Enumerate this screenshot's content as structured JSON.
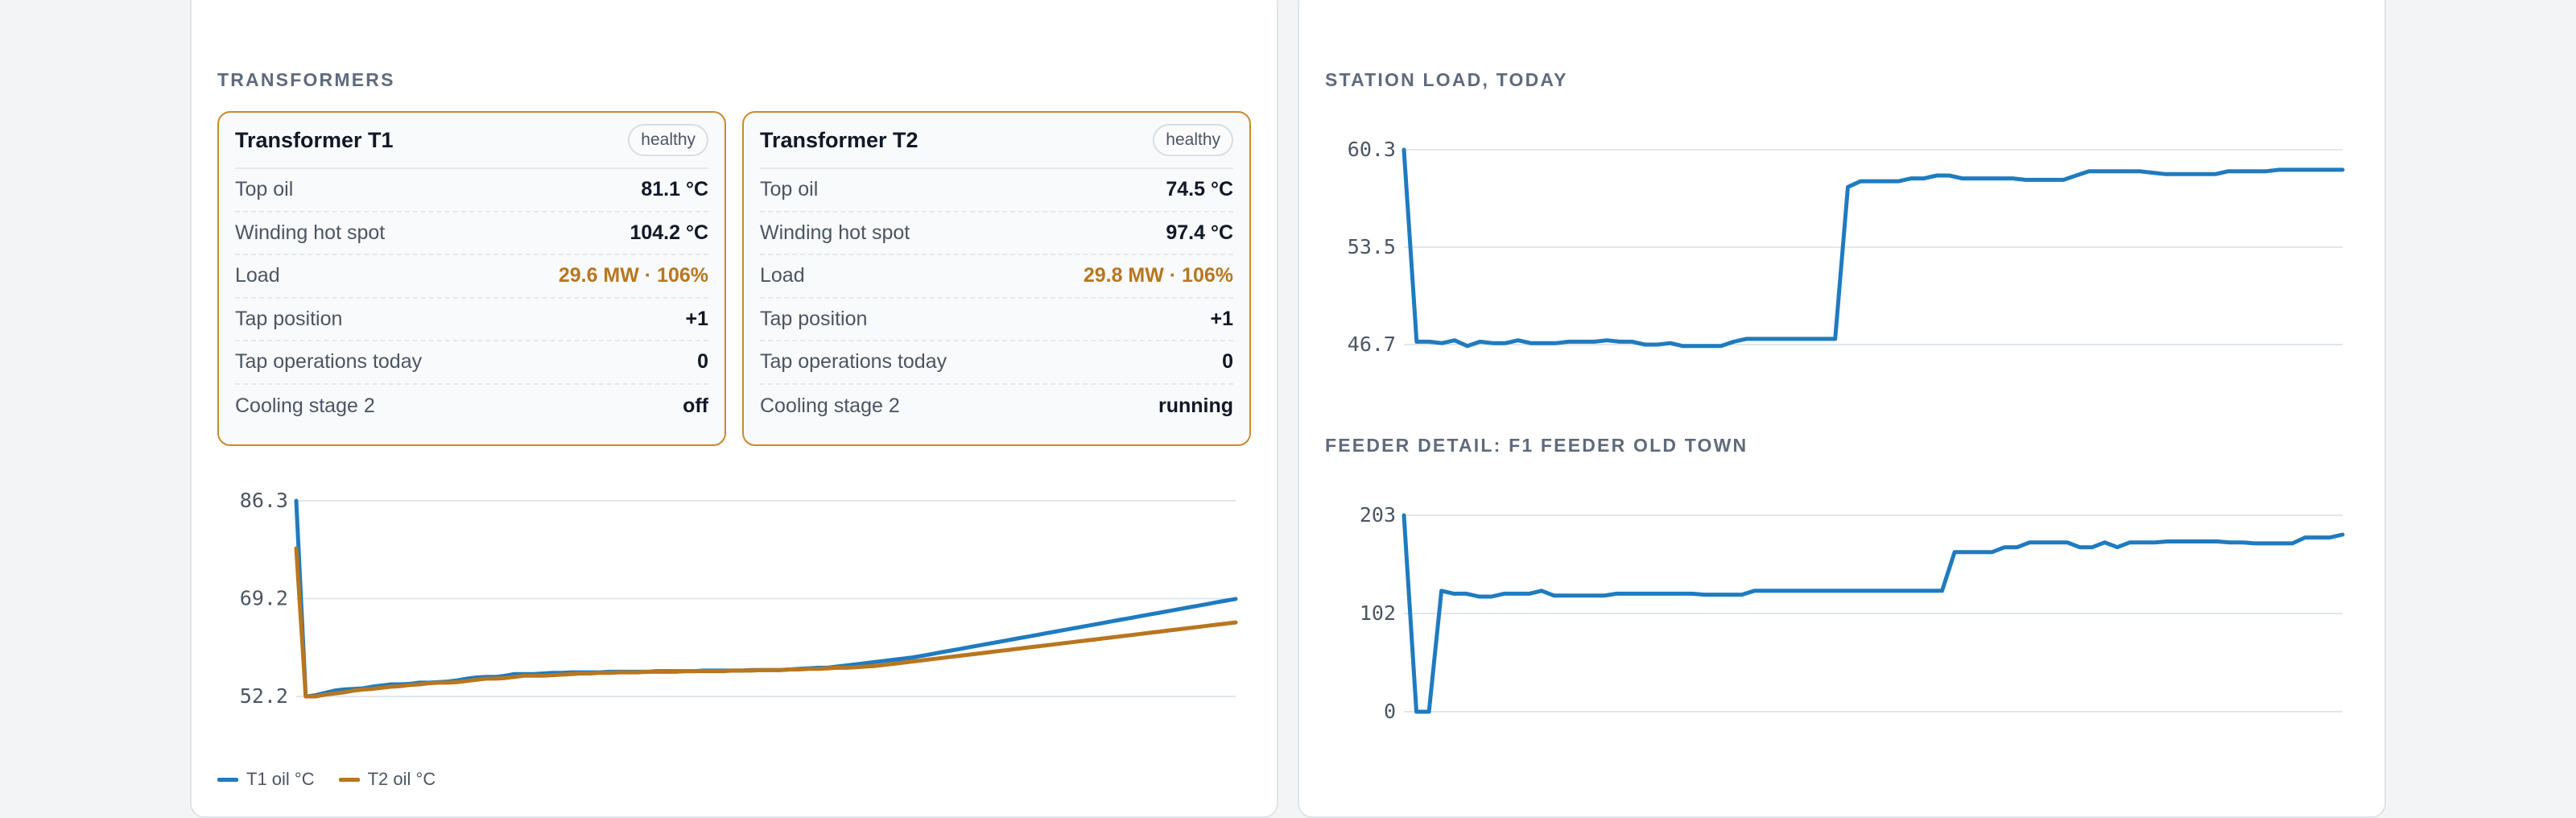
{
  "transformers": {
    "section_title": "TRANSFORMERS",
    "cards": [
      {
        "name": "Transformer T1",
        "status": "healthy",
        "rows": [
          {
            "label": "Top oil",
            "value": "81.1 °C",
            "warn": false
          },
          {
            "label": "Winding hot spot",
            "value": "104.2 °C",
            "warn": false
          },
          {
            "label": "Load",
            "value": "29.6 MW · 106%",
            "warn": true
          },
          {
            "label": "Tap position",
            "value": "+1",
            "warn": false
          },
          {
            "label": "Tap operations today",
            "value": "0",
            "warn": false
          },
          {
            "label": "Cooling stage 2",
            "value": "off",
            "warn": false
          }
        ]
      },
      {
        "name": "Transformer T2",
        "status": "healthy",
        "rows": [
          {
            "label": "Top oil",
            "value": "74.5 °C",
            "warn": false
          },
          {
            "label": "Winding hot spot",
            "value": "97.4 °C",
            "warn": false
          },
          {
            "label": "Load",
            "value": "29.8 MW · 106%",
            "warn": true
          },
          {
            "label": "Tap position",
            "value": "+1",
            "warn": false
          },
          {
            "label": "Tap operations today",
            "value": "0",
            "warn": false
          },
          {
            "label": "Cooling stage 2",
            "value": "running",
            "warn": false
          }
        ]
      }
    ],
    "legend": [
      {
        "label": "T1 oil °C",
        "color": "#1f7bbf"
      },
      {
        "label": "T2 oil °C",
        "color": "#b8761f"
      }
    ]
  },
  "station": {
    "section_title": "STATION LOAD, TODAY"
  },
  "feeder": {
    "section_title": "FEEDER DETAIL: F1 FEEDER OLD TOWN"
  },
  "colors": {
    "blue": "#1f7bbf",
    "amber": "#b8761f",
    "warn_border": "#c98a2e",
    "grid": "#e2e6ea"
  },
  "chart_data": [
    {
      "type": "line",
      "ticks": [
        "86.3",
        "69.2",
        "52.2"
      ],
      "ylim": [
        52.2,
        86.3
      ],
      "series": [
        {
          "name": "T1 oil °C",
          "color": "#1f7bbf",
          "values": [
            86.3,
            52.2,
            52.4,
            52.8,
            53.2,
            53.4,
            53.5,
            53.6,
            53.9,
            54.1,
            54.3,
            54.3,
            54.4,
            54.6,
            54.6,
            54.7,
            54.8,
            55.0,
            55.3,
            55.5,
            55.6,
            55.6,
            55.8,
            56.1,
            56.1,
            56.1,
            56.2,
            56.3,
            56.3,
            56.4,
            56.4,
            56.4,
            56.4,
            56.5,
            56.5,
            56.5,
            56.5,
            56.5,
            56.6,
            56.6,
            56.6,
            56.6,
            56.6,
            56.7,
            56.7,
            56.7,
            56.7,
            56.7,
            56.8,
            56.8,
            56.8,
            56.8,
            56.9,
            57.0,
            57.1,
            57.2,
            57.2,
            57.4,
            57.6,
            57.8,
            58.0,
            58.2,
            58.4,
            58.6,
            58.8,
            59.0,
            59.3,
            59.6,
            59.9,
            60.2,
            60.5,
            60.8,
            61.1,
            61.4,
            61.7,
            62.0,
            62.3,
            62.6,
            62.9,
            63.2,
            63.5,
            63.8,
            64.1,
            64.4,
            64.7,
            65.0,
            65.3,
            65.6,
            65.9,
            66.2,
            66.5,
            66.8,
            67.1,
            67.4,
            67.7,
            68.0,
            68.3,
            68.6,
            68.9,
            69.2
          ]
        },
        {
          "name": "T2 oil °C",
          "color": "#b8761f",
          "values": [
            78.0,
            52.2,
            52.2,
            52.5,
            52.7,
            52.9,
            53.2,
            53.4,
            53.5,
            53.7,
            53.9,
            54.0,
            54.2,
            54.3,
            54.5,
            54.6,
            54.6,
            54.7,
            54.9,
            55.1,
            55.3,
            55.3,
            55.4,
            55.6,
            55.8,
            55.8,
            55.8,
            55.9,
            56.0,
            56.1,
            56.2,
            56.2,
            56.3,
            56.3,
            56.4,
            56.4,
            56.4,
            56.5,
            56.5,
            56.5,
            56.5,
            56.6,
            56.6,
            56.6,
            56.6,
            56.6,
            56.7,
            56.7,
            56.7,
            56.8,
            56.8,
            56.8,
            56.9,
            56.9,
            57.0,
            57.0,
            57.1,
            57.2,
            57.2,
            57.3,
            57.4,
            57.5,
            57.7,
            57.9,
            58.1,
            58.3,
            58.5,
            58.7,
            58.9,
            59.1,
            59.3,
            59.5,
            59.7,
            59.9,
            60.1,
            60.3,
            60.5,
            60.7,
            60.9,
            61.1,
            61.3,
            61.5,
            61.7,
            61.9,
            62.1,
            62.3,
            62.5,
            62.7,
            62.9,
            63.1,
            63.3,
            63.5,
            63.7,
            63.9,
            64.1,
            64.3,
            64.5,
            64.7,
            64.9,
            65.1
          ]
        }
      ]
    },
    {
      "type": "line",
      "title": "STATION LOAD, TODAY",
      "ticks": [
        "60.3",
        "53.5",
        "46.7"
      ],
      "ylim": [
        46.7,
        60.3
      ],
      "series": [
        {
          "color": "#1f7bbf",
          "values": [
            60.3,
            46.9,
            46.9,
            46.8,
            47.0,
            46.6,
            46.9,
            46.8,
            46.8,
            47.0,
            46.8,
            46.8,
            46.8,
            46.9,
            46.9,
            46.9,
            47.0,
            46.9,
            46.9,
            46.7,
            46.7,
            46.8,
            46.6,
            46.6,
            46.6,
            46.6,
            46.9,
            47.1,
            47.1,
            47.1,
            47.1,
            47.1,
            47.1,
            47.1,
            47.1,
            57.7,
            58.1,
            58.1,
            58.1,
            58.1,
            58.3,
            58.3,
            58.5,
            58.5,
            58.3,
            58.3,
            58.3,
            58.3,
            58.3,
            58.2,
            58.2,
            58.2,
            58.2,
            58.5,
            58.8,
            58.8,
            58.8,
            58.8,
            58.8,
            58.7,
            58.6,
            58.6,
            58.6,
            58.6,
            58.6,
            58.8,
            58.8,
            58.8,
            58.8,
            58.9,
            58.9,
            58.9,
            58.9,
            58.9,
            58.9
          ]
        }
      ]
    },
    {
      "type": "line",
      "title": "FEEDER DETAIL: F1 FEEDER OLD TOWN",
      "ticks": [
        "203",
        "102",
        "0"
      ],
      "ylim": [
        0,
        203
      ],
      "series": [
        {
          "color": "#1f7bbf",
          "values": [
            203,
            0,
            0,
            125,
            122,
            122,
            119,
            119,
            122,
            122,
            122,
            125,
            120,
            120,
            120,
            120,
            120,
            122,
            122,
            122,
            122,
            122,
            122,
            122,
            121,
            121,
            121,
            121,
            125,
            125,
            125,
            125,
            125,
            125,
            125,
            125,
            125,
            125,
            125,
            125,
            125,
            125,
            125,
            125,
            165,
            165,
            165,
            165,
            170,
            170,
            175,
            175,
            175,
            175,
            170,
            170,
            175,
            170,
            175,
            175,
            175,
            176,
            176,
            176,
            176,
            176,
            175,
            175,
            174,
            174,
            174,
            174,
            180,
            180,
            180,
            183
          ]
        }
      ]
    }
  ]
}
